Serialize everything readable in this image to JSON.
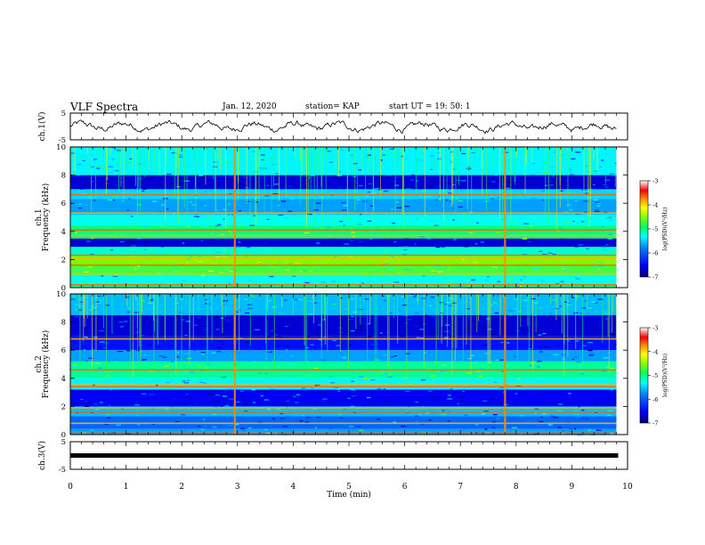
{
  "header": {
    "title": "VLF Spectra",
    "date": "Jan. 12, 2020",
    "station": "station= KAP",
    "start": "start UT =   19: 50: 1"
  },
  "chart_data": [
    {
      "type": "line",
      "panel": "waveform-ch1",
      "ylabel": "ch.1(V)",
      "ylim": [
        -5,
        5
      ],
      "yticks": [
        "5",
        "-5"
      ],
      "xlim": [
        0,
        10
      ],
      "x_range_data": [
        0,
        9.8
      ],
      "series": [
        {
          "values": "noisy waveform oscillating roughly between -2 and 2 V"
        }
      ],
      "color": "#000000"
    },
    {
      "type": "heatmap",
      "panel": "spectrogram-ch1",
      "ylabel": "ch.1\nFrequency (kHz)",
      "ylim": [
        0,
        10
      ],
      "yticks": [
        "0",
        "2",
        "4",
        "6",
        "8",
        "10"
      ],
      "xlim": [
        0,
        10
      ],
      "x_range_data": [
        0,
        9.8
      ],
      "bands_khz": [
        {
          "from": 0.0,
          "to": 0.3,
          "level": -5.3
        },
        {
          "from": 0.3,
          "to": 0.9,
          "level": -5.6
        },
        {
          "from": 0.9,
          "to": 1.6,
          "level": -5.0
        },
        {
          "from": 1.6,
          "to": 2.3,
          "level": -4.8
        },
        {
          "from": 2.3,
          "to": 2.9,
          "level": -5.5
        },
        {
          "from": 2.9,
          "to": 3.5,
          "level": -6.7
        },
        {
          "from": 3.5,
          "to": 4.4,
          "level": -5.2
        },
        {
          "from": 4.4,
          "to": 5.2,
          "level": -5.6
        },
        {
          "from": 5.2,
          "to": 6.3,
          "level": -6.0
        },
        {
          "from": 6.3,
          "to": 7.0,
          "level": -5.8
        },
        {
          "from": 7.0,
          "to": 8.0,
          "level": -6.7
        },
        {
          "from": 8.0,
          "to": 10.0,
          "level": -5.7
        }
      ],
      "lines_khz": [
        0.2,
        1.0,
        1.6,
        2.1,
        2.3,
        3.7,
        4.1,
        5.3,
        6.6
      ],
      "bursts_min": [
        2.95,
        7.8
      ],
      "colorbar": {
        "label": "log(PSD)(V²/Hz)",
        "ticks": [
          "-3",
          "-4",
          "-5",
          "-6",
          "-7"
        ],
        "range": [
          -7,
          -3
        ]
      }
    },
    {
      "type": "heatmap",
      "panel": "spectrogram-ch2",
      "ylabel": "ch.2\nFrequency (kHz)",
      "ylim": [
        0,
        10
      ],
      "yticks": [
        "0",
        "2",
        "4",
        "6",
        "8",
        "10"
      ],
      "xlim": [
        0,
        10
      ],
      "x_range_data": [
        0,
        9.8
      ],
      "bands_khz": [
        {
          "from": 0.0,
          "to": 0.4,
          "level": -6.0
        },
        {
          "from": 0.4,
          "to": 1.3,
          "level": -6.2
        },
        {
          "from": 1.3,
          "to": 2.0,
          "level": -5.9
        },
        {
          "from": 2.0,
          "to": 3.2,
          "level": -6.6
        },
        {
          "from": 3.2,
          "to": 4.0,
          "level": -5.7
        },
        {
          "from": 4.0,
          "to": 5.2,
          "level": -5.3
        },
        {
          "from": 5.2,
          "to": 6.0,
          "level": -6.0
        },
        {
          "from": 6.0,
          "to": 7.0,
          "level": -6.5
        },
        {
          "from": 7.0,
          "to": 8.5,
          "level": -6.7
        },
        {
          "from": 8.5,
          "to": 10.0,
          "level": -5.9
        }
      ],
      "lines_khz": [
        0.2,
        0.8,
        1.6,
        1.9,
        3.4,
        3.6,
        4.6,
        6.8
      ],
      "bursts_min": [
        2.95,
        7.8
      ],
      "colorbar": {
        "label": "log(PSD)(V²/Hz)",
        "ticks": [
          "-3",
          "-4",
          "-5",
          "-6",
          "-7"
        ],
        "range": [
          -7,
          -3
        ]
      }
    },
    {
      "type": "line",
      "panel": "waveform-ch3",
      "ylabel": "ch.3(V)",
      "ylim": [
        -5,
        5
      ],
      "yticks": [
        "5",
        "-5"
      ],
      "xlim": [
        0,
        10
      ],
      "x_range_data": [
        0,
        9.8
      ],
      "series": [
        {
          "values": "flat trace at about 0 V"
        }
      ],
      "color": "#000000"
    }
  ],
  "xaxis": {
    "label": "Time (min)",
    "ticks": [
      "0",
      "1",
      "2",
      "3",
      "4",
      "5",
      "6",
      "7",
      "8",
      "9",
      "10"
    ]
  },
  "colormap": [
    "#000080",
    "#0000ff",
    "#0080ff",
    "#00ffff",
    "#00ff80",
    "#80ff00",
    "#ffff00",
    "#ff8000",
    "#ff0000",
    "#ffffff"
  ]
}
